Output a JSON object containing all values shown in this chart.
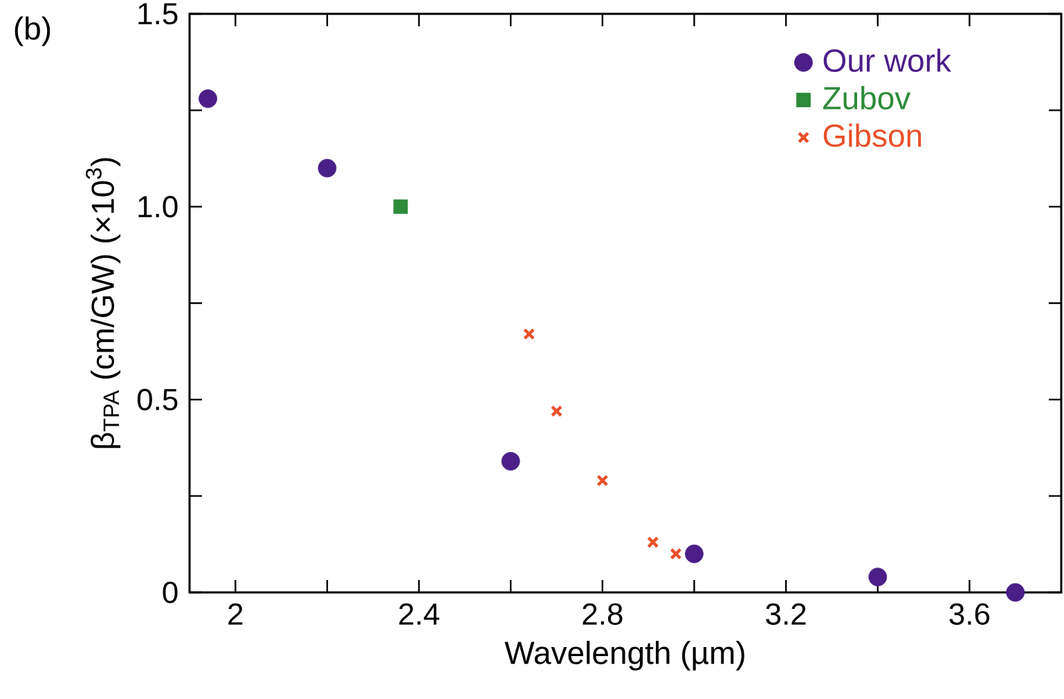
{
  "chart_data": {
    "type": "scatter",
    "xlabel": "Wavelength (µm)",
    "ylabel": "β$_{TPA}$ (cm/GW) (×10$^{3}$)",
    "annotations": [
      "(b)"
    ],
    "xlim": [
      1.9,
      3.8
    ],
    "ylim": [
      0,
      1.5
    ],
    "xticks": [
      2,
      {
        "value": 2.2,
        "label": null
      },
      2.4,
      {
        "value": 2.6,
        "label": null
      },
      2.8,
      {
        "value": 3.0,
        "label": null
      },
      3.2,
      {
        "value": 3.4,
        "label": null
      },
      3.6
    ],
    "yticks": [
      0,
      {
        "value": 0.25,
        "label": null
      },
      0.5,
      {
        "value": 0.75,
        "label": null
      },
      {
        "value": 1,
        "label": "1.0"
      },
      {
        "value": 1.25,
        "label": null
      },
      1.5
    ],
    "legend": "top right",
    "grid": false,
    "series": [
      {
        "name": "Our work",
        "color": "#4b1f87",
        "marker": "circle",
        "x": [
          1.94,
          2.2,
          2.6,
          3.0,
          3.4,
          3.7
        ],
        "values": [
          1.28,
          1.1,
          0.34,
          0.1,
          0.04,
          0
        ]
      },
      {
        "name": "Zubov",
        "color": "#2e8b3a",
        "marker": "square",
        "x": [
          2.36
        ],
        "values": [
          1.0
        ]
      },
      {
        "name": "Gibson",
        "color": "#e8502a",
        "marker": "cross",
        "x": [
          2.64,
          2.7,
          2.8,
          2.91,
          2.96
        ],
        "values": [
          0.67,
          0.47,
          0.29,
          0.13,
          0.1
        ]
      }
    ]
  }
}
